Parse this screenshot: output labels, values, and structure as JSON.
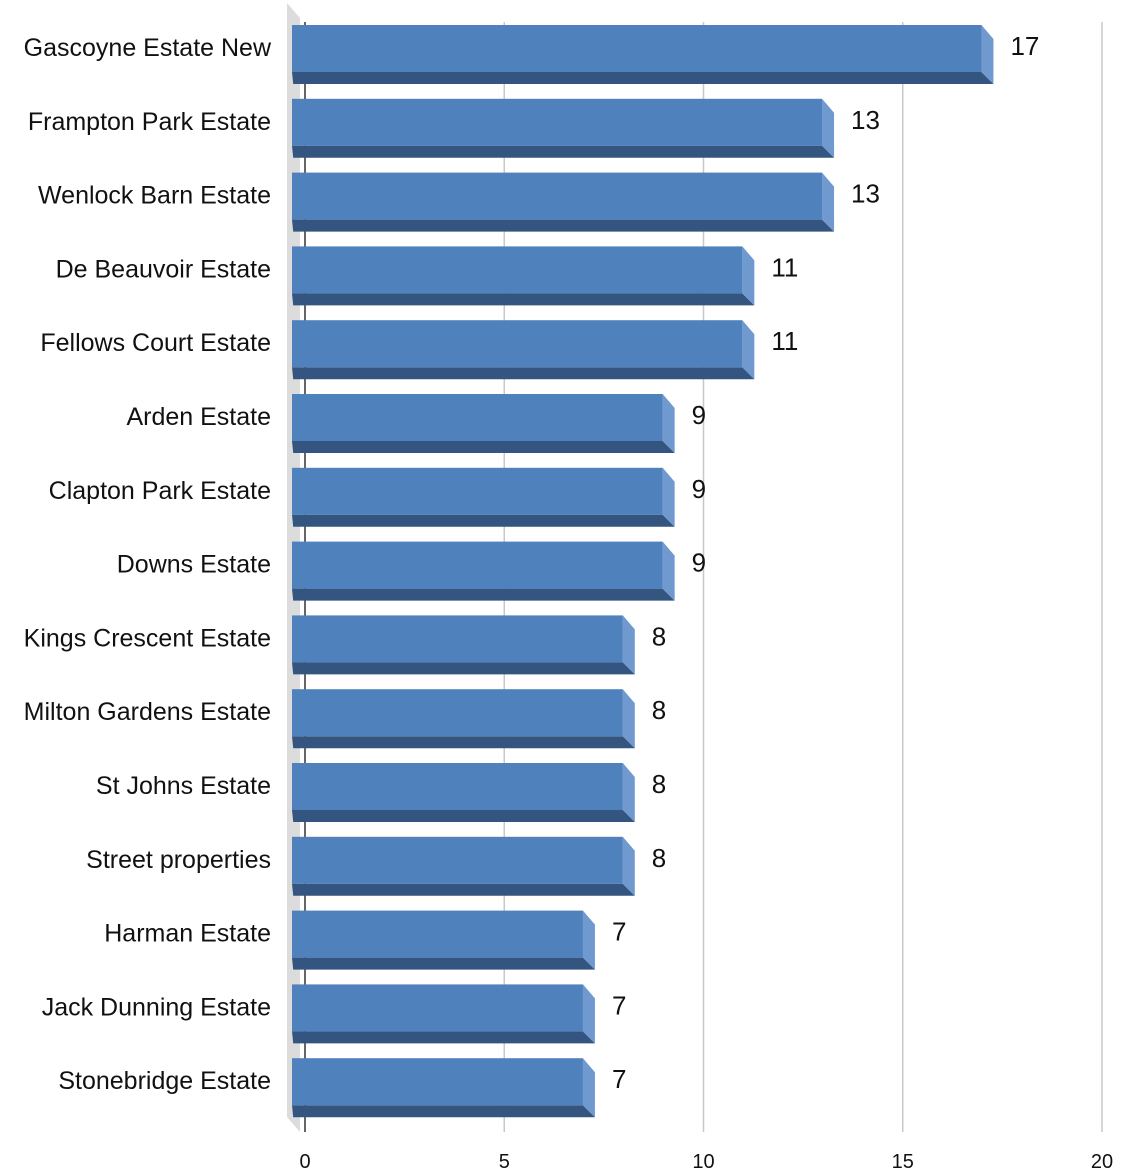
{
  "chart_data": {
    "type": "bar",
    "orientation": "horizontal",
    "style": "3d",
    "categories": [
      "Gascoyne Estate New",
      "Frampton Park Estate",
      "Wenlock Barn Estate",
      "De Beauvoir Estate",
      "Fellows Court Estate",
      "Arden Estate",
      "Clapton Park Estate",
      "Downs Estate",
      "Kings Crescent Estate",
      "Milton Gardens Estate",
      "St Johns Estate",
      "Street properties",
      "Harman Estate",
      "Jack Dunning Estate",
      "Stonebridge Estate"
    ],
    "values": [
      17,
      13,
      13,
      11,
      11,
      9,
      9,
      9,
      8,
      8,
      8,
      8,
      7,
      7,
      7
    ],
    "data_labels": [
      "17",
      "13",
      "13",
      "11",
      "11",
      "9",
      "9",
      "9",
      "8",
      "8",
      "8",
      "8",
      "7",
      "7",
      "7"
    ],
    "x_ticks": [
      "0",
      "5",
      "10",
      "15",
      "20"
    ],
    "xlim": [
      0,
      20
    ],
    "title": "",
    "xlabel": "",
    "ylabel": "",
    "grid": "vertical",
    "legend": "none",
    "colors": {
      "bar_front": "#4f81bd",
      "bar_bottom": "#34557f",
      "bar_side": "#6f99cf",
      "gridline": "#c8c8c8",
      "floor": "#dcdcdc"
    }
  }
}
